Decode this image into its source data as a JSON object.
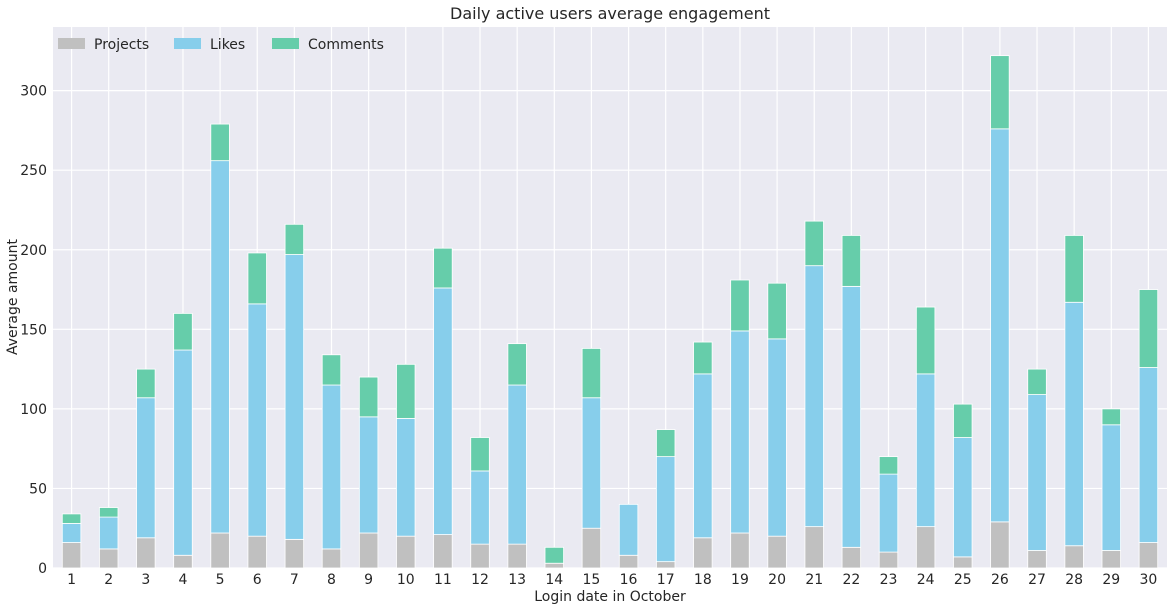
{
  "chart_data": {
    "type": "bar",
    "stacked": true,
    "title": "Daily active users average engagement",
    "xlabel": "Login date in October",
    "ylabel": "Average amount",
    "ylim": [
      0,
      340
    ],
    "yticks": [
      0,
      50,
      100,
      150,
      200,
      250,
      300
    ],
    "grid": true,
    "legend_position": "top-left",
    "categories": [
      "1",
      "2",
      "3",
      "4",
      "5",
      "6",
      "7",
      "8",
      "9",
      "10",
      "11",
      "12",
      "13",
      "14",
      "15",
      "16",
      "17",
      "18",
      "19",
      "20",
      "21",
      "22",
      "23",
      "24",
      "25",
      "26",
      "27",
      "28",
      "29",
      "30"
    ],
    "series": [
      {
        "name": "Projects",
        "color": "#c0c0c0",
        "values": [
          16,
          12,
          19,
          8,
          22,
          20,
          18,
          12,
          22,
          20,
          21,
          15,
          15,
          3,
          25,
          8,
          4,
          19,
          22,
          20,
          26,
          13,
          10,
          26,
          7,
          29,
          11,
          14,
          11,
          16
        ]
      },
      {
        "name": "Likes",
        "color": "#87ceeb",
        "values": [
          12,
          20,
          88,
          129,
          234,
          146,
          179,
          103,
          73,
          74,
          155,
          46,
          100,
          0,
          82,
          32,
          66,
          103,
          127,
          124,
          164,
          164,
          49,
          96,
          75,
          247,
          98,
          153,
          79,
          110
        ]
      },
      {
        "name": "Comments",
        "color": "#66cdaa",
        "values": [
          6,
          6,
          18,
          23,
          23,
          32,
          19,
          19,
          25,
          34,
          25,
          21,
          26,
          10,
          31,
          0,
          17,
          20,
          32,
          35,
          28,
          32,
          11,
          42,
          21,
          46,
          16,
          42,
          10,
          49
        ]
      }
    ]
  }
}
